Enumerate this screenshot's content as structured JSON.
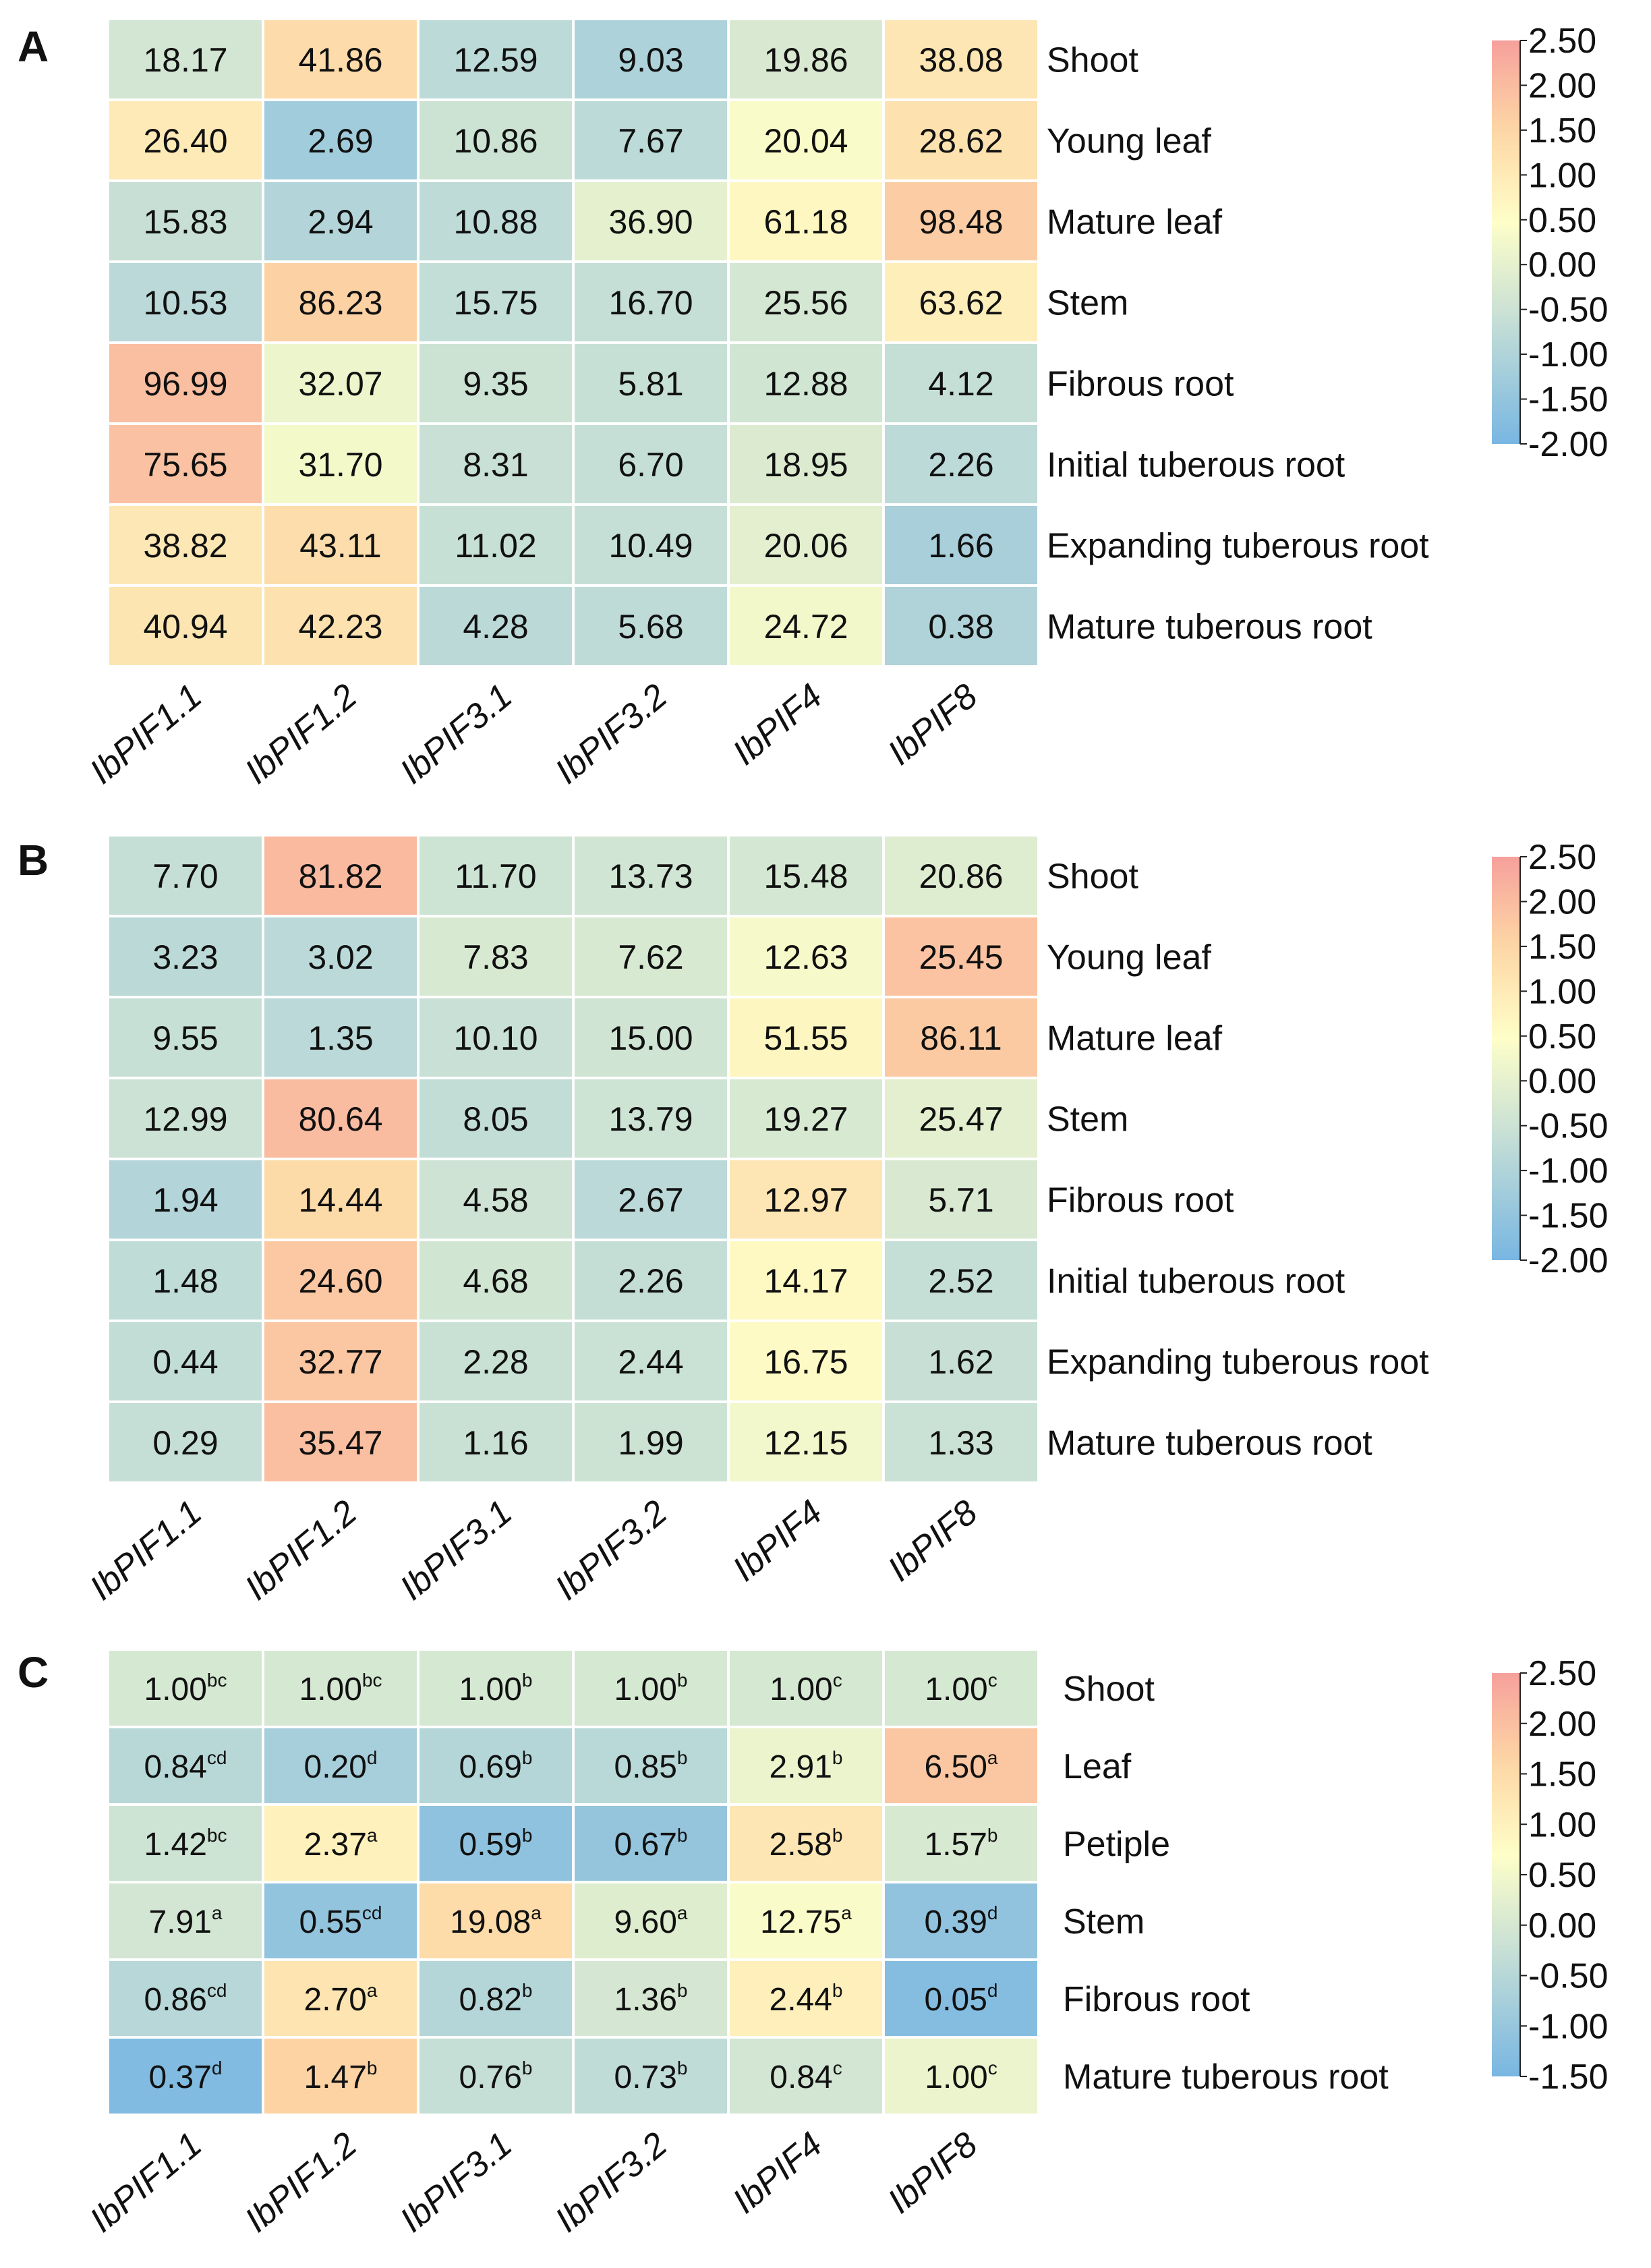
{
  "chart_data": [
    {
      "type": "heatmap",
      "panel_label": "A",
      "columns": [
        "IbPIF1.1",
        "IbPIF1.2",
        "IbPIF3.1",
        "IbPIF3.2",
        "IbPIF4",
        "IbPIF8"
      ],
      "rows": [
        "Shoot",
        "Young leaf",
        "Mature leaf",
        "Stem",
        "Fibrous root",
        "Initial tuberous root",
        "Expanding tuberous root",
        "Mature tuberous root"
      ],
      "values": [
        [
          "18.17",
          "41.86",
          "12.59",
          "9.03",
          "19.86",
          "38.08"
        ],
        [
          "26.40",
          "2.69",
          "10.86",
          "7.67",
          "20.04",
          "28.62"
        ],
        [
          "15.83",
          "2.94",
          "10.88",
          "36.90",
          "61.18",
          "98.48"
        ],
        [
          "10.53",
          "86.23",
          "15.75",
          "16.70",
          "25.56",
          "63.62"
        ],
        [
          "96.99",
          "32.07",
          "9.35",
          "5.81",
          "12.88",
          "4.12"
        ],
        [
          "75.65",
          "31.70",
          "8.31",
          "6.70",
          "18.95",
          "2.26"
        ],
        [
          "38.82",
          "43.11",
          "11.02",
          "10.49",
          "20.06",
          "1.66"
        ],
        [
          "40.94",
          "42.23",
          "4.28",
          "5.68",
          "24.72",
          "0.38"
        ]
      ],
      "colorbar": {
        "min": -2.0,
        "max": 2.5,
        "ticks": [
          "2.50",
          "2.00",
          "1.50",
          "1.00",
          "0.50",
          "0.00",
          "-0.50",
          "-1.00",
          "-1.50",
          "-2.00"
        ]
      }
    },
    {
      "type": "heatmap",
      "panel_label": "B",
      "columns": [
        "IbPIF1.1",
        "IbPIF1.2",
        "IbPIF3.1",
        "IbPIF3.2",
        "IbPIF4",
        "IbPIF8"
      ],
      "rows": [
        "Shoot",
        "Young leaf",
        "Mature leaf",
        "Stem",
        "Fibrous root",
        "Initial tuberous root",
        "Expanding tuberous root",
        "Mature tuberous root"
      ],
      "values": [
        [
          "7.70",
          "81.82",
          "11.70",
          "13.73",
          "15.48",
          "20.86"
        ],
        [
          "3.23",
          "3.02",
          "7.83",
          "7.62",
          "12.63",
          "25.45"
        ],
        [
          "9.55",
          "1.35",
          "10.10",
          "15.00",
          "51.55",
          "86.11"
        ],
        [
          "12.99",
          "80.64",
          "8.05",
          "13.79",
          "19.27",
          "25.47"
        ],
        [
          "1.94",
          "14.44",
          "4.58",
          "2.67",
          "12.97",
          "5.71"
        ],
        [
          "1.48",
          "24.60",
          "4.68",
          "2.26",
          "14.17",
          "2.52"
        ],
        [
          "0.44",
          "32.77",
          "2.28",
          "2.44",
          "16.75",
          "1.62"
        ],
        [
          "0.29",
          "35.47",
          "1.16",
          "1.99",
          "12.15",
          "1.33"
        ]
      ],
      "colorbar": {
        "min": -2.0,
        "max": 2.5,
        "ticks": [
          "2.50",
          "2.00",
          "1.50",
          "1.00",
          "0.50",
          "0.00",
          "-0.50",
          "-1.00",
          "-1.50",
          "-2.00"
        ]
      }
    },
    {
      "type": "heatmap",
      "panel_label": "C",
      "columns": [
        "IbPIF1.1",
        "IbPIF1.2",
        "IbPIF3.1",
        "IbPIF3.2",
        "IbPIF4",
        "IbPIF8"
      ],
      "rows": [
        "Shoot",
        "Leaf",
        "Petiple",
        "Stem",
        "Fibrous root",
        "Mature tuberous root"
      ],
      "values": [
        [
          "1.00",
          "1.00",
          "1.00",
          "1.00",
          "1.00",
          "1.00"
        ],
        [
          "0.84",
          "0.20",
          "0.69",
          "0.85",
          "2.91",
          "6.50"
        ],
        [
          "1.42",
          "2.37",
          "0.59",
          "0.67",
          "2.58",
          "1.57"
        ],
        [
          "7.91",
          "0.55",
          "19.08",
          "9.60",
          "12.75",
          "0.39"
        ],
        [
          "0.86",
          "2.70",
          "0.82",
          "1.36",
          "2.44",
          "0.05"
        ],
        [
          "0.37",
          "1.47",
          "0.76",
          "0.73",
          "0.84",
          "1.00"
        ]
      ],
      "letters": [
        [
          "bc",
          "bc",
          "b",
          "b",
          "c",
          "c"
        ],
        [
          "cd",
          "d",
          "b",
          "b",
          "b",
          "a"
        ],
        [
          "bc",
          "a",
          "b",
          "b",
          "b",
          "b"
        ],
        [
          "a",
          "cd",
          "a",
          "a",
          "a",
          "d"
        ],
        [
          "cd",
          "a",
          "b",
          "b",
          "b",
          "d"
        ],
        [
          "d",
          "b",
          "b",
          "b",
          "c",
          "c"
        ]
      ],
      "colorbar": {
        "min": -1.5,
        "max": 2.5,
        "ticks": [
          "2.50",
          "2.00",
          "1.50",
          "1.00",
          "0.50",
          "0.00",
          "-0.50",
          "-1.00",
          "-1.50"
        ]
      }
    }
  ]
}
